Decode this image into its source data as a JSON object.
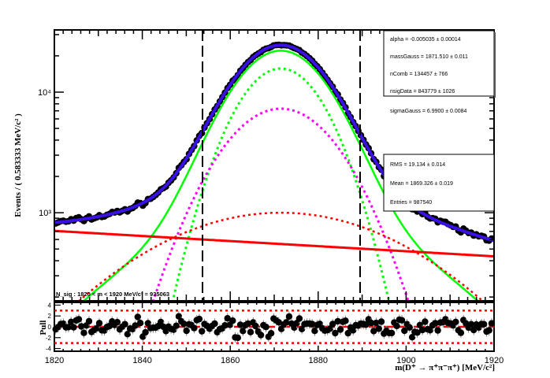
{
  "chart_data": {
    "type": "scatter",
    "title": "",
    "xlabel": "m(D⁺ → π⁺π⁻π⁺) [MeV/c²]",
    "ylabel": "Events / ( 0.583333  MeV/c² )",
    "xlim": [
      1820,
      1920
    ],
    "ylim": [
      186,
      32800
    ],
    "yscale": "log",
    "x_ticks": [
      "1820",
      "1840",
      "1860",
      "1880",
      "1900",
      "1920"
    ],
    "y_ticks": [
      {
        "label": "10³",
        "value": 1000
      },
      {
        "label": "10⁴",
        "value": 10000
      }
    ],
    "bin_width": 0.583333,
    "signal_window": [
      1853.7,
      1889.5
    ],
    "components": [
      {
        "name": "Total fit",
        "color": "#3a10e5",
        "style": "solid"
      },
      {
        "name": "Signal",
        "color": "#00ff00",
        "style": "solid"
      },
      {
        "name": "Gauss (narrow)",
        "color": "#00ff00",
        "style": "dotted",
        "peak": 15700,
        "mean": 1871.5,
        "sigma": 8.25
      },
      {
        "name": "Gauss (wide)",
        "color": "#ff00ff",
        "style": "dotted",
        "peak": 7290,
        "mean": 1871.5,
        "sigma": 10.7
      },
      {
        "name": "Gauss (broad)",
        "color": "#ff0000",
        "style": "dotted",
        "peak": 1000,
        "mean": 1871.5,
        "sigma": 25
      },
      {
        "name": "Combinatorial",
        "color": "#ff0000",
        "style": "solid",
        "at_1820": 707,
        "alpha": -0.005035
      }
    ],
    "fit_box": [
      "alpha = -0.005035 ± 0.00014",
      "massGauss =  1871.510 ± 0.011",
      "nComb =  134457 ± 766",
      "nsigData =  843779 ± 1026",
      "sigmaGauss =  6.9900 ± 0.0084"
    ],
    "stats_box": [
      "RMS =  19.134 ± 0.014",
      "Mean =  1869.326 ± 0.019",
      "Entries =  987540"
    ],
    "annotation": "N_sig : 1820 < m < 1920 MeV/c² = 935063",
    "pull": {
      "ylabel": "Pull",
      "ylim": [
        -4.5,
        4.5
      ],
      "y_ticks": [
        "4",
        "2",
        "0",
        "-2",
        "-4"
      ],
      "bands": [
        -3,
        0,
        3
      ]
    }
  }
}
